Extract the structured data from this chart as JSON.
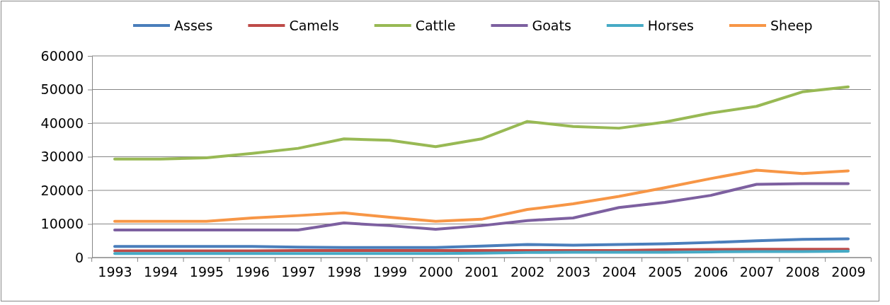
{
  "chart_data": {
    "type": "line",
    "categories": [
      "1993",
      "1994",
      "1995",
      "1996",
      "1997",
      "1998",
      "1999",
      "2000",
      "2001",
      "2002",
      "2003",
      "2004",
      "2005",
      "2006",
      "2007",
      "2008",
      "2009"
    ],
    "series": [
      {
        "name": "Asses",
        "color": "#4a7ebb",
        "values": [
          3300,
          3300,
          3300,
          3300,
          3100,
          3000,
          3000,
          3000,
          3400,
          3900,
          3700,
          3900,
          4100,
          4500,
          5000,
          5400,
          5600
        ]
      },
      {
        "name": "Camels",
        "color": "#be4b48",
        "values": [
          2000,
          2000,
          2000,
          2000,
          2100,
          2100,
          2100,
          2100,
          2100,
          2100,
          2100,
          2100,
          2300,
          2400,
          2500,
          2500,
          2500
        ]
      },
      {
        "name": "Cattle",
        "color": "#98b954",
        "values": [
          29300,
          29300,
          29700,
          31000,
          32500,
          35300,
          34900,
          33000,
          35300,
          40500,
          39000,
          38500,
          40300,
          43000,
          45000,
          49300,
          50800
        ]
      },
      {
        "name": "Goats",
        "color": "#7d60a0",
        "values": [
          8200,
          8200,
          8200,
          8200,
          8200,
          10300,
          9500,
          8400,
          9500,
          11000,
          11800,
          14900,
          16400,
          18500,
          21800,
          22000,
          22000
        ]
      },
      {
        "name": "Horses",
        "color": "#46aac5",
        "values": [
          1200,
          1200,
          1200,
          1200,
          1200,
          1200,
          1200,
          1200,
          1300,
          1500,
          1600,
          1600,
          1600,
          1700,
          1800,
          1800,
          1900
        ]
      },
      {
        "name": "Sheep",
        "color": "#f79646",
        "values": [
          10800,
          10800,
          10800,
          11800,
          12500,
          13300,
          12000,
          10800,
          11400,
          14300,
          16000,
          18200,
          20800,
          23500,
          26000,
          25000,
          25800
        ]
      }
    ],
    "ylim": [
      0,
      60000
    ],
    "yticks": [
      0,
      10000,
      20000,
      30000,
      40000,
      50000,
      60000
    ],
    "grid": "y",
    "legend": "top",
    "marker": "none",
    "line_style": "solid"
  }
}
